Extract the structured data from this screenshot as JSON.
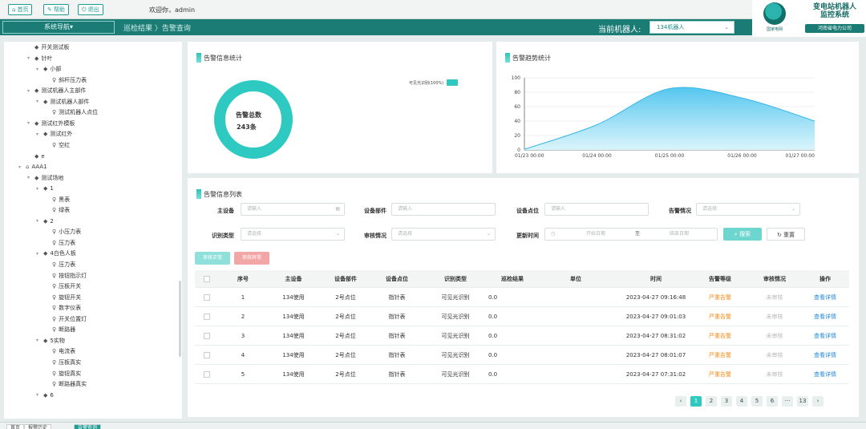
{
  "topbar": {
    "home_label": "首页",
    "help_label": "帮助",
    "logout_label": "退出",
    "welcome": "欢迎你，admin"
  },
  "nav": {
    "system_nav": "系统导航▾",
    "breadcrumb": "巡检结果 〉告警查询",
    "robot_label": "当前机器人:",
    "robot_value": "134机器人"
  },
  "brand": {
    "title_line1": "变电站机器人",
    "title_line2": "监控系统",
    "company": "河南省电力公司",
    "logo_text": "国家电网"
  },
  "tree": [
    {
      "label": "开关测试板",
      "indent": 2,
      "icon": "leaf",
      "arrow": ""
    },
    {
      "label": "针叶",
      "indent": 2,
      "icon": "branch",
      "arrow": "▾"
    },
    {
      "label": "小部",
      "indent": 3,
      "icon": "branch",
      "arrow": "▾"
    },
    {
      "label": "斜杆压力表",
      "indent": 4,
      "icon": "point",
      "arrow": ""
    },
    {
      "label": "测试机器人主部件",
      "indent": 2,
      "icon": "branch",
      "arrow": "▾"
    },
    {
      "label": "测试机器人部件",
      "indent": 3,
      "icon": "branch",
      "arrow": "▾"
    },
    {
      "label": "测试机器人点位",
      "indent": 4,
      "icon": "point",
      "arrow": ""
    },
    {
      "label": "测试红外模板",
      "indent": 2,
      "icon": "branch",
      "arrow": "▾"
    },
    {
      "label": "测试红外",
      "indent": 3,
      "icon": "branch",
      "arrow": "▾"
    },
    {
      "label": "空红",
      "indent": 4,
      "icon": "point",
      "arrow": ""
    },
    {
      "label": "e",
      "indent": 2,
      "icon": "leaf",
      "arrow": ""
    },
    {
      "label": "AAA1",
      "indent": 1,
      "icon": "station",
      "arrow": "▾"
    },
    {
      "label": "测试场地",
      "indent": 2,
      "icon": "branch",
      "arrow": "▾"
    },
    {
      "label": "1",
      "indent": 3,
      "icon": "branch",
      "arrow": "▾"
    },
    {
      "label": "黑表",
      "indent": 4,
      "icon": "point",
      "arrow": ""
    },
    {
      "label": "绿表",
      "indent": 4,
      "icon": "point",
      "arrow": ""
    },
    {
      "label": "2",
      "indent": 3,
      "icon": "branch",
      "arrow": "▾"
    },
    {
      "label": "小压力表",
      "indent": 4,
      "icon": "point",
      "arrow": ""
    },
    {
      "label": "压力表",
      "indent": 4,
      "icon": "point",
      "arrow": ""
    },
    {
      "label": "4白色人板",
      "indent": 3,
      "icon": "branch",
      "arrow": "▾"
    },
    {
      "label": "压力表",
      "indent": 4,
      "icon": "point",
      "arrow": ""
    },
    {
      "label": "按钮指示灯",
      "indent": 4,
      "icon": "point",
      "arrow": ""
    },
    {
      "label": "压板开关",
      "indent": 4,
      "icon": "point",
      "arrow": ""
    },
    {
      "label": "旋钮开关",
      "indent": 4,
      "icon": "point",
      "arrow": ""
    },
    {
      "label": "数字仪表",
      "indent": 4,
      "icon": "point",
      "arrow": ""
    },
    {
      "label": "开关位置灯",
      "indent": 4,
      "icon": "point",
      "arrow": ""
    },
    {
      "label": "断路器",
      "indent": 4,
      "icon": "point",
      "arrow": ""
    },
    {
      "label": "5实物",
      "indent": 3,
      "icon": "branch",
      "arrow": "▾"
    },
    {
      "label": "电流表",
      "indent": 4,
      "icon": "point",
      "arrow": ""
    },
    {
      "label": "压板真实",
      "indent": 4,
      "icon": "point",
      "arrow": ""
    },
    {
      "label": "旋钮真实",
      "indent": 4,
      "icon": "point",
      "arrow": ""
    },
    {
      "label": "断路器真实",
      "indent": 4,
      "icon": "point",
      "arrow": ""
    },
    {
      "label": "6",
      "indent": 3,
      "icon": "branch",
      "arrow": "▾"
    }
  ],
  "stats": {
    "title": "告警信息统计",
    "total_label": "告警总数",
    "total_value": "243条",
    "legend_label": "可见光识别(100%)",
    "color": "#2ec9c0"
  },
  "chart_data": {
    "type": "area",
    "title": "告警趋势统计",
    "x": [
      "01/23 00:00",
      "01/24 00:00",
      "01/25 00:00",
      "01/26 00:00",
      "01/27 00:00"
    ],
    "series": [
      {
        "values": [
          1,
          35,
          85,
          72,
          40
        ]
      }
    ],
    "ylim": [
      0,
      100
    ],
    "yticks": [
      0,
      20,
      40,
      60,
      80,
      100
    ],
    "grid": true,
    "color": "#4cc3ee"
  },
  "alerts": {
    "title": "告警信息列表",
    "filters": {
      "main_device_label": "主设备",
      "main_device_placeholder": "请输入",
      "device_part_label": "设备部件",
      "device_part_placeholder": "请输入",
      "device_point_label": "设备点位",
      "device_point_placeholder": "请输入",
      "alarm_status_label": "告警情况",
      "alarm_status_placeholder": "请选择",
      "recog_type_label": "识别类型",
      "recog_type_placeholder": "请选择",
      "audit_status_label": "审核情况",
      "audit_status_placeholder": "请选择",
      "update_time_label": "更新时间",
      "start_date_placeholder": "开始日期",
      "date_sep": "至",
      "end_date_placeholder": "结束日期",
      "search_button": "搜索",
      "reset_button": "重置"
    },
    "actions": {
      "audit_normal": "审核正常",
      "audit_abnormal": "审核异常"
    },
    "columns": [
      "序号",
      "主设备",
      "设备部件",
      "设备点位",
      "识别类型",
      "巡检结果",
      "单位",
      "时间",
      "告警等级",
      "审核情况",
      "操作"
    ],
    "rows": [
      {
        "no": "1",
        "device": "134使用",
        "part": "2号点位",
        "point": "指针表",
        "type": "可见光识别",
        "result": "0.0",
        "unit": "",
        "time": "2023-04-27 09:16:48",
        "level": "严重告警",
        "audit": "未审核",
        "op": "查看详情"
      },
      {
        "no": "2",
        "device": "134使用",
        "part": "2号点位",
        "point": "指针表",
        "type": "可见光识别",
        "result": "0.0",
        "unit": "",
        "time": "2023-04-27 09:01:03",
        "level": "严重告警",
        "audit": "未审核",
        "op": "查看详情"
      },
      {
        "no": "3",
        "device": "134使用",
        "part": "2号点位",
        "point": "指针表",
        "type": "可见光识别",
        "result": "0.0",
        "unit": "",
        "time": "2023-04-27 08:31:02",
        "level": "严重告警",
        "audit": "未审核",
        "op": "查看详情"
      },
      {
        "no": "4",
        "device": "134使用",
        "part": "2号点位",
        "point": "指针表",
        "type": "可见光识别",
        "result": "0.0",
        "unit": "",
        "time": "2023-04-27 08:01:07",
        "level": "严重告警",
        "audit": "未审核",
        "op": "查看详情"
      },
      {
        "no": "5",
        "device": "134使用",
        "part": "2号点位",
        "point": "指针表",
        "type": "可见光识别",
        "result": "0.0",
        "unit": "",
        "time": "2023-04-27 07:31:02",
        "level": "严重告警",
        "audit": "未审核",
        "op": "查看详情"
      }
    ],
    "pagination": {
      "prev": "‹",
      "pages": [
        "1",
        "2",
        "3",
        "4",
        "5",
        "6"
      ],
      "ellipsis": "···",
      "last": "13",
      "next": "›"
    }
  },
  "bottom_tabs": [
    "首页",
    "报警历史",
    "告警查询"
  ]
}
